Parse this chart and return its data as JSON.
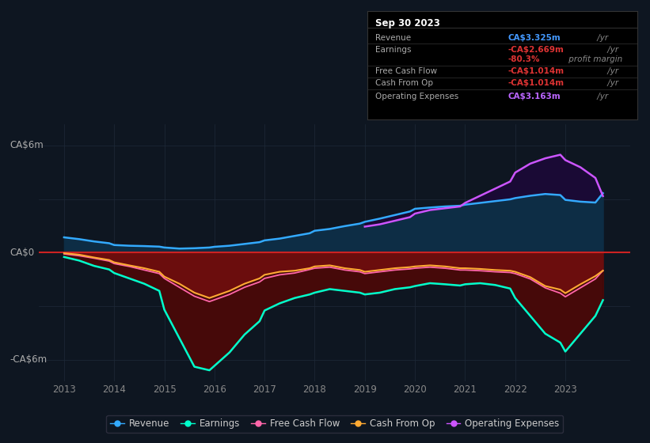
{
  "bg_color": "#0e1621",
  "plot_bg_color": "#0e1621",
  "ylabel_top": "CA$6m",
  "ylabel_zero": "CA$0",
  "ylabel_bottom": "-CA$6m",
  "ylim": [
    -7.2,
    7.2
  ],
  "xlim": [
    2012.5,
    2024.3
  ],
  "x_ticks": [
    2013,
    2014,
    2015,
    2016,
    2017,
    2018,
    2019,
    2020,
    2021,
    2022,
    2023
  ],
  "grid_color": "#1e2a38",
  "zero_line_color": "#cc2222",
  "info_box": {
    "title": "Sep 30 2023",
    "rows": [
      {
        "label": "Revenue",
        "value": "CA$3.325m",
        "unit": "/yr",
        "value_color": "#4499ff",
        "unit_color": "#888888"
      },
      {
        "label": "Earnings",
        "value": "-CA$2.669m",
        "unit": "/yr",
        "value_color": "#dd3333",
        "unit_color": "#888888"
      },
      {
        "label": "",
        "value": "-80.3%",
        "unit": "profit margin",
        "value_color": "#dd3333",
        "unit_color": "#888888"
      },
      {
        "label": "Free Cash Flow",
        "value": "-CA$1.014m",
        "unit": "/yr",
        "value_color": "#dd3333",
        "unit_color": "#888888"
      },
      {
        "label": "Cash From Op",
        "value": "-CA$1.014m",
        "unit": "/yr",
        "value_color": "#dd3333",
        "unit_color": "#888888"
      },
      {
        "label": "Operating Expenses",
        "value": "CA$3.163m",
        "unit": "/yr",
        "value_color": "#bb66ff",
        "unit_color": "#888888"
      }
    ]
  },
  "series": {
    "years": [
      2013.0,
      2013.3,
      2013.6,
      2013.9,
      2014.0,
      2014.3,
      2014.6,
      2014.9,
      2015.0,
      2015.3,
      2015.6,
      2015.9,
      2016.0,
      2016.3,
      2016.6,
      2016.9,
      2017.0,
      2017.3,
      2017.6,
      2017.9,
      2018.0,
      2018.3,
      2018.6,
      2018.9,
      2019.0,
      2019.3,
      2019.6,
      2019.9,
      2020.0,
      2020.3,
      2020.6,
      2020.9,
      2021.0,
      2021.3,
      2021.6,
      2021.9,
      2022.0,
      2022.3,
      2022.6,
      2022.9,
      2023.0,
      2023.3,
      2023.6,
      2023.75
    ],
    "revenue": [
      0.85,
      0.75,
      0.62,
      0.52,
      0.42,
      0.38,
      0.36,
      0.33,
      0.28,
      0.22,
      0.24,
      0.28,
      0.32,
      0.38,
      0.48,
      0.58,
      0.68,
      0.78,
      0.93,
      1.08,
      1.22,
      1.32,
      1.48,
      1.62,
      1.72,
      1.9,
      2.1,
      2.3,
      2.45,
      2.52,
      2.58,
      2.62,
      2.68,
      2.78,
      2.88,
      2.98,
      3.05,
      3.18,
      3.28,
      3.22,
      2.95,
      2.85,
      2.8,
      3.325
    ],
    "earnings": [
      -0.25,
      -0.45,
      -0.75,
      -0.95,
      -1.15,
      -1.45,
      -1.75,
      -2.15,
      -3.2,
      -4.8,
      -6.4,
      -6.6,
      -6.35,
      -5.6,
      -4.6,
      -3.85,
      -3.25,
      -2.85,
      -2.55,
      -2.35,
      -2.25,
      -2.05,
      -2.15,
      -2.25,
      -2.35,
      -2.25,
      -2.05,
      -1.95,
      -1.88,
      -1.72,
      -1.78,
      -1.85,
      -1.78,
      -1.72,
      -1.82,
      -2.02,
      -2.55,
      -3.55,
      -4.55,
      -5.05,
      -5.55,
      -4.55,
      -3.55,
      -2.669
    ],
    "free_cash_flow": [
      -0.08,
      -0.18,
      -0.32,
      -0.48,
      -0.62,
      -0.78,
      -0.98,
      -1.18,
      -1.45,
      -1.95,
      -2.45,
      -2.75,
      -2.65,
      -2.35,
      -1.95,
      -1.65,
      -1.45,
      -1.25,
      -1.15,
      -0.95,
      -0.88,
      -0.82,
      -0.98,
      -1.08,
      -1.18,
      -1.08,
      -0.98,
      -0.92,
      -0.88,
      -0.82,
      -0.88,
      -0.98,
      -0.98,
      -1.02,
      -1.08,
      -1.12,
      -1.18,
      -1.48,
      -1.98,
      -2.28,
      -2.48,
      -1.98,
      -1.48,
      -1.014
    ],
    "cash_from_op": [
      -0.04,
      -0.12,
      -0.28,
      -0.42,
      -0.55,
      -0.72,
      -0.88,
      -1.08,
      -1.35,
      -1.75,
      -2.25,
      -2.55,
      -2.45,
      -2.15,
      -1.75,
      -1.45,
      -1.25,
      -1.08,
      -1.02,
      -0.88,
      -0.78,
      -0.72,
      -0.88,
      -0.98,
      -1.08,
      -0.98,
      -0.88,
      -0.82,
      -0.78,
      -0.72,
      -0.78,
      -0.88,
      -0.88,
      -0.92,
      -0.98,
      -1.02,
      -1.08,
      -1.38,
      -1.88,
      -2.08,
      -2.28,
      -1.78,
      -1.32,
      -1.014
    ],
    "op_expenses": [
      0.0,
      0.0,
      0.0,
      0.0,
      0.0,
      0.0,
      0.0,
      0.0,
      0.0,
      0.0,
      0.0,
      0.0,
      0.0,
      0.0,
      0.0,
      0.0,
      0.0,
      0.0,
      0.0,
      0.0,
      0.0,
      0.0,
      0.0,
      0.0,
      1.45,
      1.58,
      1.78,
      1.98,
      2.18,
      2.38,
      2.48,
      2.58,
      2.78,
      3.18,
      3.58,
      3.98,
      4.48,
      4.98,
      5.28,
      5.48,
      5.18,
      4.78,
      4.18,
      3.163
    ]
  },
  "colors": {
    "revenue": "#33aaff",
    "earnings": "#00ffcc",
    "free_cash_flow": "#ff66aa",
    "cash_from_op": "#ffaa33",
    "op_expenses": "#cc55ff"
  },
  "fills": {
    "revenue_pos": "#0d2d45",
    "op_over_revenue": "#1a0a35",
    "earnings_neg": "#6b0d0d",
    "earnings_neg2": "#3d0808"
  },
  "legend": [
    {
      "label": "Revenue",
      "color": "#33aaff"
    },
    {
      "label": "Earnings",
      "color": "#00ffcc"
    },
    {
      "label": "Free Cash Flow",
      "color": "#ff66aa"
    },
    {
      "label": "Cash From Op",
      "color": "#ffaa33"
    },
    {
      "label": "Operating Expenses",
      "color": "#cc55ff"
    }
  ]
}
